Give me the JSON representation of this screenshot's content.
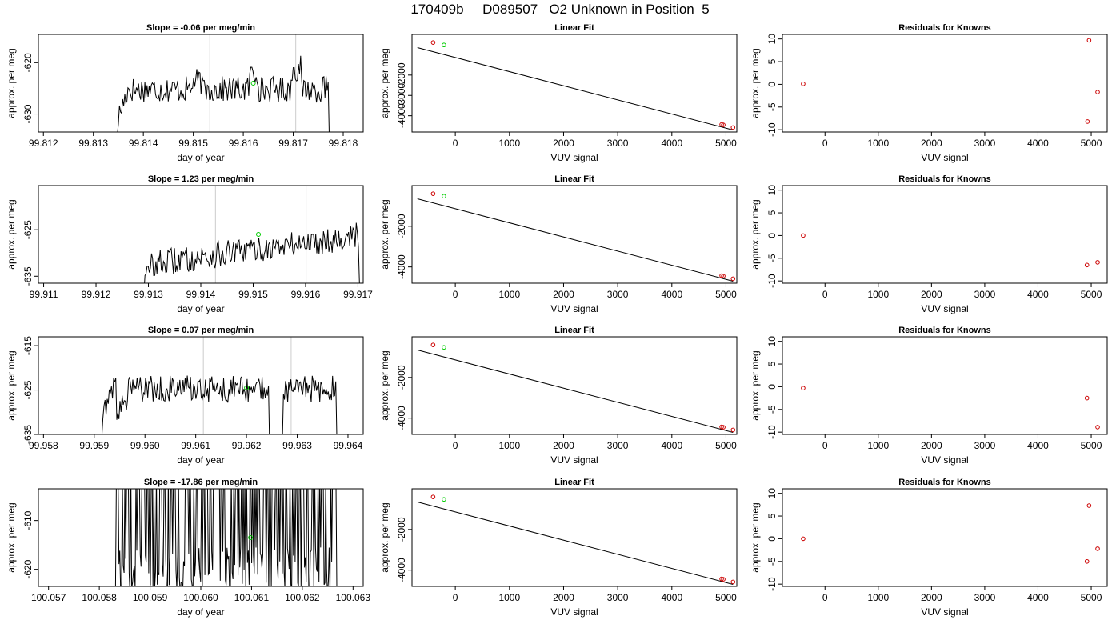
{
  "page_title": "170409b     D089507   O2 Unknown in Position  5",
  "colors": {
    "line": "#000000",
    "known_point": "#cc0000",
    "unknown_point": "#00cc00",
    "event_line": "#cccccc",
    "axis": "#000000"
  },
  "chart_data": [
    {
      "type": "line",
      "row": 0,
      "col": 0,
      "title": "Slope =  -0.06  per meg/min",
      "xlabel": "day of year",
      "ylabel": "approx. per meg",
      "xlim": [
        99.8119,
        99.8184
      ],
      "ylim": [
        -633.5,
        -614.5
      ],
      "xticks": [
        99.812,
        99.813,
        99.814,
        99.815,
        99.816,
        99.817,
        99.818
      ],
      "xtick_labels": [
        "99.812",
        "99.813",
        "99.814",
        "99.815",
        "99.816",
        "99.817",
        "99.818"
      ],
      "yticks": [
        -620,
        -630
      ],
      "ytick_labels": [
        "-620",
        "-630"
      ],
      "vlines": [
        99.81533,
        99.81705
      ],
      "x_start": 99.81348,
      "x_end": 99.81772,
      "n_points": 200,
      "baseline": -625.2,
      "noise": 1.6,
      "bias": [
        [
          0.35,
          1.5
        ],
        [
          0.62,
          3.0
        ],
        [
          0.82,
          4.0
        ]
      ],
      "start_value": -634,
      "end_value": -634,
      "unknown_point": {
        "x": 99.8162,
        "y": -624
      }
    },
    {
      "type": "scatter",
      "row": 0,
      "col": 1,
      "title": "Linear Fit",
      "xlabel": "VUV signal",
      "ylabel": "approx. per meg",
      "xlim": [
        -800,
        5200
      ],
      "ylim": [
        -4800,
        0
      ],
      "xticks": [
        0,
        1000,
        2000,
        3000,
        4000,
        5000
      ],
      "xtick_labels": [
        "0",
        "1000",
        "2000",
        "3000",
        "4000",
        "5000"
      ],
      "yticks": [
        -2000,
        -3000,
        -4000
      ],
      "ytick_labels": [
        "-2000",
        "-3000",
        "-4000"
      ],
      "fit_line": [
        [
          -700,
          -650
        ],
        [
          5130,
          -4700
        ]
      ],
      "known": [
        [
          -410,
          -400
        ],
        [
          4920,
          -4430
        ],
        [
          4950,
          -4450
        ],
        [
          5130,
          -4580
        ]
      ],
      "unknown": [
        [
          -210,
          -520
        ]
      ]
    },
    {
      "type": "scatter",
      "row": 0,
      "col": 2,
      "title": "Residuals for Knowns",
      "xlabel": "VUV signal",
      "ylabel": "approx. per meg",
      "xlim": [
        -800,
        5300
      ],
      "ylim": [
        -10.5,
        11
      ],
      "xticks": [
        0,
        1000,
        2000,
        3000,
        4000,
        5000
      ],
      "xtick_labels": [
        "0",
        "1000",
        "2000",
        "3000",
        "4000",
        "5000"
      ],
      "yticks": [
        10,
        5,
        0,
        -5,
        -10
      ],
      "ytick_labels": [
        "10",
        "5",
        "0",
        "-5",
        "-10"
      ],
      "known": [
        [
          -410,
          0.1
        ],
        [
          4960,
          9.7
        ],
        [
          4930,
          -8.2
        ],
        [
          5120,
          -1.7
        ]
      ]
    },
    {
      "type": "line",
      "row": 1,
      "col": 0,
      "title": "Slope =  1.23  per meg/min",
      "xlabel": "day of year",
      "ylabel": "approx. per meg",
      "xlim": [
        99.9109,
        99.9171
      ],
      "ylim": [
        -636.5,
        -615.5
      ],
      "xticks": [
        99.911,
        99.912,
        99.913,
        99.914,
        99.915,
        99.916,
        99.917
      ],
      "xtick_labels": [
        "99.911",
        "99.912",
        "99.913",
        "99.914",
        "99.915",
        "99.916",
        "99.917"
      ],
      "yticks": [
        -625,
        -635
      ],
      "ytick_labels": [
        "-625",
        "-635"
      ],
      "vlines": [
        99.91428,
        99.91601
      ],
      "x_start": 99.91285,
      "x_end": 99.91703,
      "n_points": 200,
      "baseline": -629.5,
      "noise": 1.8,
      "trend": 6.5,
      "bias": [],
      "start_value": -637,
      "end_value": -637,
      "unknown_point": {
        "x": 99.9151,
        "y": -626
      }
    },
    {
      "type": "scatter",
      "row": 1,
      "col": 1,
      "title": "Linear Fit",
      "xlabel": "VUV signal",
      "ylabel": "approx. per meg",
      "xlim": [
        -800,
        5200
      ],
      "ylim": [
        -4800,
        0
      ],
      "xticks": [
        0,
        1000,
        2000,
        3000,
        4000,
        5000
      ],
      "xtick_labels": [
        "0",
        "1000",
        "2000",
        "3000",
        "4000",
        "5000"
      ],
      "yticks": [
        -2000,
        -4000
      ],
      "ytick_labels": [
        "-2000",
        "-4000"
      ],
      "fit_line": [
        [
          -700,
          -650
        ],
        [
          5130,
          -4700
        ]
      ],
      "known": [
        [
          -410,
          -400
        ],
        [
          4920,
          -4430
        ],
        [
          4950,
          -4450
        ],
        [
          5130,
          -4580
        ]
      ],
      "unknown": [
        [
          -210,
          -520
        ]
      ]
    },
    {
      "type": "scatter",
      "row": 1,
      "col": 2,
      "title": "Residuals for Knowns",
      "xlabel": "VUV signal",
      "ylabel": "approx. per meg",
      "xlim": [
        -800,
        5300
      ],
      "ylim": [
        -10.5,
        11
      ],
      "xticks": [
        0,
        1000,
        2000,
        3000,
        4000,
        5000
      ],
      "xtick_labels": [
        "0",
        "1000",
        "2000",
        "3000",
        "4000",
        "5000"
      ],
      "yticks": [
        10,
        5,
        0,
        -5,
        -10
      ],
      "ytick_labels": [
        "10",
        "5",
        "0",
        "-5",
        "-10"
      ],
      "known": [
        [
          -410,
          0.0
        ],
        [
          4920,
          -6.5
        ],
        [
          5120,
          -5.9
        ]
      ]
    },
    {
      "type": "line",
      "row": 2,
      "col": 0,
      "title": "Slope =  0.07  per meg/min",
      "xlabel": "day of year",
      "ylabel": "approx. per meg",
      "xlim": [
        99.9579,
        99.9643
      ],
      "ylim": [
        -635,
        -613
      ],
      "xticks": [
        99.958,
        99.959,
        99.96,
        99.961,
        99.962,
        99.963,
        99.964
      ],
      "xtick_labels": [
        "99.958",
        "99.959",
        "99.960",
        "99.961",
        "99.962",
        "99.963",
        "99.964"
      ],
      "yticks": [
        -615,
        -625,
        -635
      ],
      "ytick_labels": [
        "-615",
        "-625",
        "-635"
      ],
      "vlines": [
        99.96115,
        99.96288
      ],
      "x_start": 99.95915,
      "x_end": 99.96378,
      "n_points": 220,
      "baseline": -624.8,
      "noise": 1.9,
      "bias": [
        [
          0.06,
          -4.5
        ]
      ],
      "dips": [
        [
          0.74,
          0.03
        ]
      ],
      "start_value": -635.5,
      "end_value": -635.5,
      "unknown_point": {
        "x": 99.962,
        "y": -624.5
      }
    },
    {
      "type": "scatter",
      "row": 2,
      "col": 1,
      "title": "Linear Fit",
      "xlabel": "VUV signal",
      "ylabel": "approx. per meg",
      "xlim": [
        -800,
        5200
      ],
      "ylim": [
        -4800,
        0
      ],
      "xticks": [
        0,
        1000,
        2000,
        3000,
        4000,
        5000
      ],
      "xtick_labels": [
        "0",
        "1000",
        "2000",
        "3000",
        "4000",
        "5000"
      ],
      "yticks": [
        -2000,
        -4000
      ],
      "ytick_labels": [
        "-2000",
        "-4000"
      ],
      "fit_line": [
        [
          -700,
          -650
        ],
        [
          5130,
          -4700
        ]
      ],
      "known": [
        [
          -410,
          -400
        ],
        [
          4920,
          -4430
        ],
        [
          4950,
          -4450
        ],
        [
          5130,
          -4580
        ]
      ],
      "unknown": [
        [
          -210,
          -520
        ]
      ]
    },
    {
      "type": "scatter",
      "row": 2,
      "col": 2,
      "title": "Residuals for Knowns",
      "xlabel": "VUV signal",
      "ylabel": "approx. per meg",
      "xlim": [
        -800,
        5300
      ],
      "ylim": [
        -10.5,
        11
      ],
      "xticks": [
        0,
        1000,
        2000,
        3000,
        4000,
        5000
      ],
      "xtick_labels": [
        "0",
        "1000",
        "2000",
        "3000",
        "4000",
        "5000"
      ],
      "yticks": [
        10,
        5,
        0,
        -5,
        -10
      ],
      "ytick_labels": [
        "10",
        "5",
        "0",
        "-5",
        "-10"
      ],
      "known": [
        [
          -410,
          -0.3
        ],
        [
          4920,
          -2.5
        ],
        [
          5120,
          -8.9
        ]
      ]
    },
    {
      "type": "line",
      "row": 3,
      "col": 0,
      "title": "Slope =  -17.86  per meg/min",
      "xlabel": "day of year",
      "ylabel": "approx. per meg",
      "xlim": [
        100.0568,
        100.0632
      ],
      "ylim": [
        -623.5,
        -603.5
      ],
      "xticks": [
        100.057,
        100.058,
        100.059,
        100.06,
        100.061,
        100.062,
        100.063
      ],
      "xtick_labels": [
        "100.057",
        "100.058",
        "100.059",
        "100.060",
        "100.061",
        "100.062",
        "100.063"
      ],
      "yticks": [
        -610,
        -620
      ],
      "ytick_labels": [
        "-610",
        "-620"
      ],
      "vlines": [],
      "x_start": 100.05832,
      "x_end": 100.06268,
      "n_points": 260,
      "spiky": true,
      "start_value": -624,
      "end_value": -624,
      "unknown_point": {
        "x": 100.06098,
        "y": -613.5
      }
    },
    {
      "type": "scatter",
      "row": 3,
      "col": 1,
      "title": "Linear Fit",
      "xlabel": "VUV signal",
      "ylabel": "approx. per meg",
      "xlim": [
        -800,
        5200
      ],
      "ylim": [
        -4800,
        0
      ],
      "xticks": [
        0,
        1000,
        2000,
        3000,
        4000,
        5000
      ],
      "xtick_labels": [
        "0",
        "1000",
        "2000",
        "3000",
        "4000",
        "5000"
      ],
      "yticks": [
        -2000,
        -4000
      ],
      "ytick_labels": [
        "-2000",
        "-4000"
      ],
      "fit_line": [
        [
          -700,
          -650
        ],
        [
          5130,
          -4700
        ]
      ],
      "known": [
        [
          -410,
          -400
        ],
        [
          4920,
          -4430
        ],
        [
          4950,
          -4450
        ],
        [
          5130,
          -4580
        ]
      ],
      "unknown": [
        [
          -210,
          -520
        ]
      ]
    },
    {
      "type": "scatter",
      "row": 3,
      "col": 2,
      "title": "Residuals for Knowns",
      "xlabel": "VUV signal",
      "ylabel": "approx. per meg",
      "xlim": [
        -800,
        5300
      ],
      "ylim": [
        -10.5,
        11
      ],
      "xticks": [
        0,
        1000,
        2000,
        3000,
        4000,
        5000
      ],
      "xtick_labels": [
        "0",
        "1000",
        "2000",
        "3000",
        "4000",
        "5000"
      ],
      "yticks": [
        10,
        5,
        0,
        -5,
        -10
      ],
      "ytick_labels": [
        "10",
        "5",
        "0",
        "-5",
        "-10"
      ],
      "known": [
        [
          -410,
          0.0
        ],
        [
          4960,
          7.3
        ],
        [
          4920,
          -5.0
        ],
        [
          5120,
          -2.2
        ]
      ]
    }
  ]
}
